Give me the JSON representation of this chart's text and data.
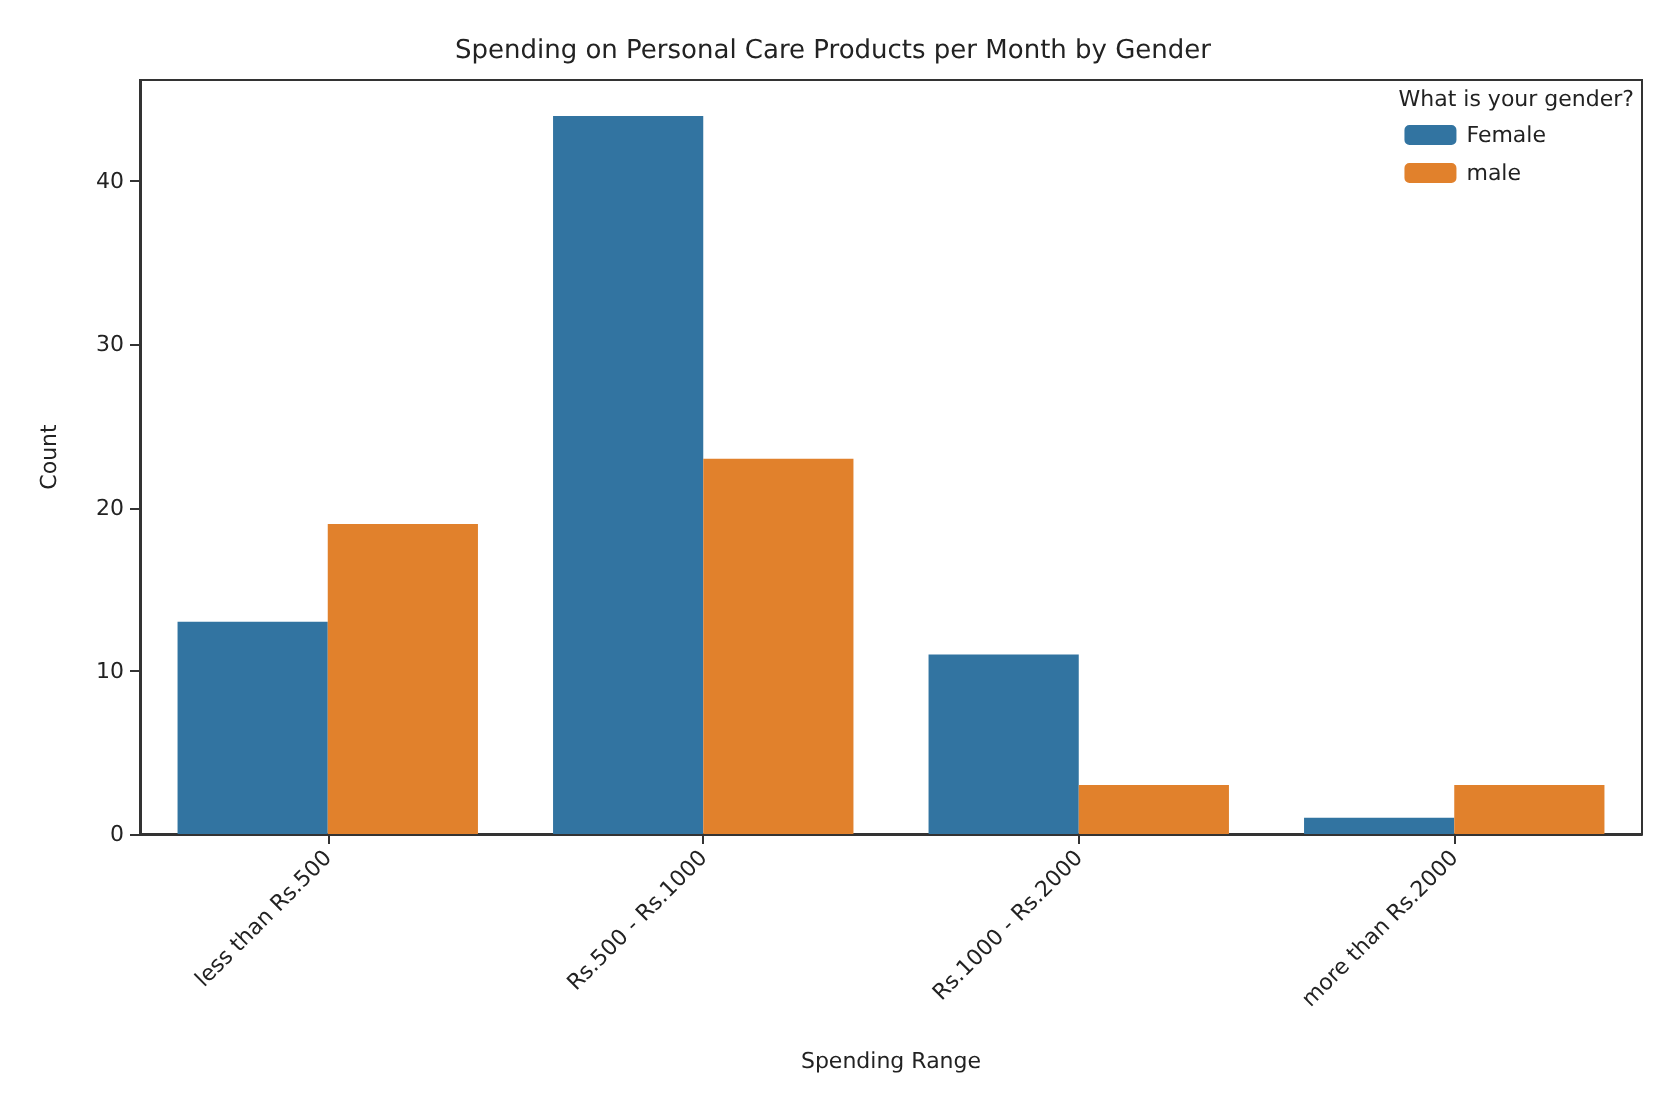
{
  "chart_data": {
    "type": "bar",
    "title": "Spending on Personal Care Products per Month by Gender",
    "xlabel": "Spending Range",
    "ylabel": "Count",
    "legend_title": "What is your gender?",
    "categories": [
      "less than Rs.500",
      "Rs.500 - Rs.1000",
      "Rs.1000 - Rs.2000",
      "more than Rs.2000"
    ],
    "series": [
      {
        "name": "Female",
        "color": "#3274a1",
        "values": [
          13,
          44,
          11,
          1
        ]
      },
      {
        "name": "male",
        "color": "#e1812c",
        "values": [
          19,
          23,
          3,
          3
        ]
      }
    ],
    "ylim": [
      0,
      46.2
    ],
    "yticks": [
      0,
      10,
      20,
      30,
      40
    ],
    "grid": false,
    "legend": "top right"
  }
}
